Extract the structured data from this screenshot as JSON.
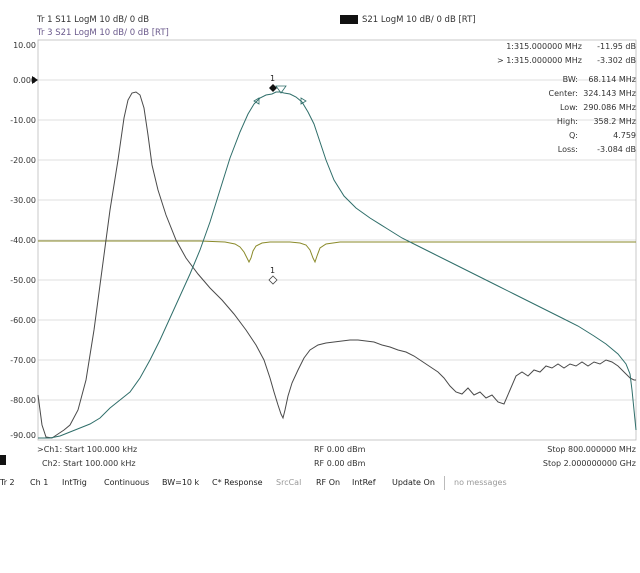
{
  "traces": {
    "tr1_label": "Tr 1   S11  LogM  10 dB/  0 dB",
    "tr3_label": "Tr 3   S21  LogM  10 dB/  0 dB [RT]",
    "legend_label": "S21  LogM  10 dB/  0 dB [RT]"
  },
  "y_ticks": [
    "10.00",
    "0.000",
    "-10.00",
    "-20.00",
    "-30.00",
    "-40.00",
    "-50.00",
    "-60.00",
    "-70.00",
    "-80.00",
    "-90.00"
  ],
  "markers": {
    "m1_freq": "1:315.000000 MHz",
    "m1_value": "-11.95 dB",
    "m2_freq": "> 1:315.000000 MHz",
    "m2_value": "-3.302 dB",
    "stats": [
      {
        "label": "BW:",
        "value": "68.114 MHz"
      },
      {
        "label": "Center:",
        "value": "324.143 MHz"
      },
      {
        "label": "Low:",
        "value": "290.086 MHz"
      },
      {
        "label": "High:",
        "value": "358.2 MHz"
      },
      {
        "label": "Q:",
        "value": "4.759"
      },
      {
        "label": "Loss:",
        "value": "-3.084 dB"
      }
    ]
  },
  "marker_tags": {
    "m_top": "1",
    "m_mid": "1"
  },
  "footer": {
    "ch1_start": ">Ch1: Start  100.000 kHz",
    "ch1_rf": "RF  0.00 dBm",
    "ch1_stop": "Stop  800.000000 MHz",
    "ch2_start": "Ch2: Start  100.000 kHz",
    "ch2_rf": "RF  0.00 dBm",
    "ch2_stop": "Stop  2.000000000 GHz"
  },
  "status": {
    "tr": "Tr 2",
    "ch": "Ch 1",
    "trig": "IntTrig",
    "mode": "Continuous",
    "bw": "BW=10 k",
    "response": "C* Response",
    "srccal": "SrcCal",
    "rf": "RF On",
    "ref": "IntRef",
    "update": "Update On",
    "messages": "no messages"
  },
  "colors": {
    "s11_trace": "#4a4a4a",
    "s21_trace": "#2f6e6a",
    "ch2_trace": "#8a8a2a",
    "grid": "#cfcfcf"
  }
}
